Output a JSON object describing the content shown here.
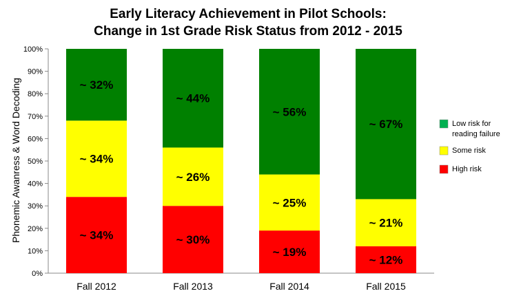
{
  "chart_data": {
    "type": "bar",
    "stacked": true,
    "title": [
      "Early Literacy Achievement in Pilot Schools:",
      "Change in 1st Grade Risk Status from 2012 - 2015"
    ],
    "ylabel": "Phonemic Awanress & Word Decoding",
    "xlabel": "",
    "ylim": [
      0,
      100
    ],
    "yticks": [
      "0%",
      "10%",
      "20%",
      "30%",
      "40%",
      "50%",
      "60%",
      "70%",
      "80%",
      "90%",
      "100%"
    ],
    "categories": [
      "Fall 2012",
      "Fall 2013",
      "Fall 2014",
      "Fall 2015"
    ],
    "series": [
      {
        "name": "High risk",
        "color": "#ff0000",
        "values": [
          34,
          30,
          19,
          12
        ],
        "labels": [
          "~ 34%",
          "~ 30%",
          "~ 19%",
          "~ 12%"
        ]
      },
      {
        "name": "Some risk",
        "color": "#ffff00",
        "values": [
          34,
          26,
          25,
          21
        ],
        "labels": [
          "~ 34%",
          "~ 26%",
          "~ 25%",
          "~ 21%"
        ]
      },
      {
        "name": "Low risk for reading failure",
        "color": "#008000",
        "values": [
          32,
          44,
          56,
          67
        ],
        "labels": [
          "~ 32%",
          "~ 44%",
          "~ 56%",
          "~ 67%"
        ]
      }
    ],
    "legend": {
      "position": "right",
      "entries": [
        {
          "lines": [
            "Low risk for",
            "reading failure"
          ],
          "color": "#00b050",
          "series": "Low risk for reading failure"
        },
        {
          "lines": [
            "Some risk"
          ],
          "color": "#ffff00",
          "series": "Some risk"
        },
        {
          "lines": [
            "High risk"
          ],
          "color": "#ff0000",
          "series": "High risk"
        }
      ]
    },
    "grid": false
  }
}
